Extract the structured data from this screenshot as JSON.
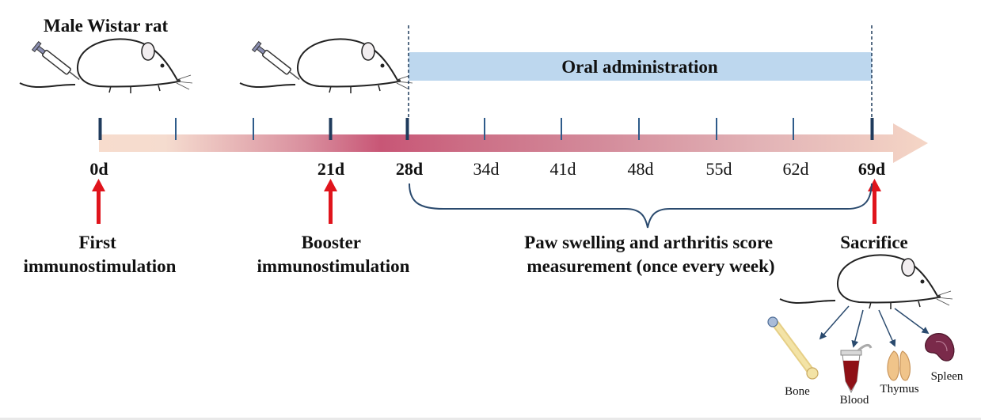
{
  "title": "Male Wistar rat",
  "oral_administration_label": "Oral administration",
  "timeline": {
    "day_labels": [
      "0d",
      "21d",
      "28d",
      "34d",
      "41d",
      "48d",
      "55d",
      "62d",
      "69d"
    ]
  },
  "events": {
    "first": [
      "First",
      "immunostimulation"
    ],
    "booster": [
      "Booster",
      "immunostimulation"
    ],
    "measurement": [
      "Paw swelling and arthritis score",
      "measurement (once every week)"
    ],
    "sacrifice": "Sacrifice"
  },
  "organs": {
    "bone": "Bone",
    "blood": "Blood",
    "thymus": "Thymus",
    "spleen": "Spleen"
  },
  "colors": {
    "admin_bar": "#bdd7ee",
    "tick": "#1f3b5c",
    "event_arrow": "#e0141c",
    "bracket": "#2a4a6e"
  },
  "icons": [
    "syringe-icon",
    "rat-icon",
    "bone-icon",
    "blood-tube-icon",
    "thymus-icon",
    "spleen-icon"
  ]
}
